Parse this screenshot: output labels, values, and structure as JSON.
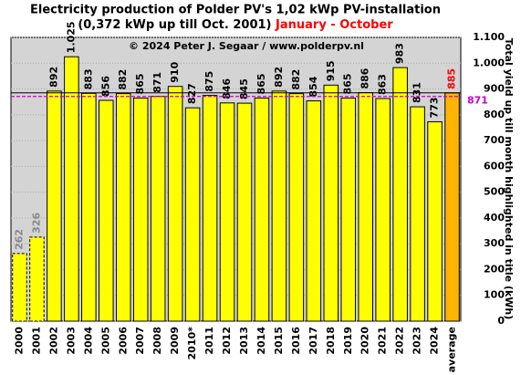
{
  "chart_data": {
    "type": "bar",
    "title": "Electricity production  of Polder PV's 1,02 kWp PV-installation",
    "subtitle": "(0,372 kWp up till Oct. 2001)",
    "subtitle_highlight": "January - October",
    "annotation": "© 2024 Peter J. Segaar / www.polderpv.nl",
    "y_axis_label": "Total yield up till month highlighted in title (kWh)",
    "categories": [
      "2000",
      "2001",
      "2002",
      "2003",
      "2004",
      "2005",
      "2006",
      "2007",
      "2008",
      "2009",
      "2010*",
      "2011",
      "2012",
      "2013",
      "2014",
      "2015",
      "2016",
      "2017",
      "2018",
      "2019",
      "2020",
      "2021",
      "2022",
      "2023",
      "2024",
      "average"
    ],
    "values": [
      262,
      326,
      892,
      1025,
      883,
      856,
      882,
      865,
      871,
      910,
      827,
      875,
      846,
      845,
      865,
      892,
      882,
      854,
      915,
      865,
      886,
      863,
      983,
      831,
      773,
      885
    ],
    "value_labels": [
      "262",
      "326",
      "892",
      "1.025",
      "883",
      "856",
      "882",
      "865",
      "871",
      "910",
      "827",
      "875",
      "846",
      "845",
      "865",
      "892",
      "882",
      "854",
      "915",
      "865",
      "886",
      "863",
      "983",
      "831",
      "773",
      "885"
    ],
    "bar_colors": [
      "#ffff00",
      "#ffff00",
      "#ffff00",
      "#ffff00",
      "#ffff00",
      "#ffff00",
      "#ffff00",
      "#ffff00",
      "#ffff00",
      "#ffff00",
      "#ffff00",
      "#ffff00",
      "#ffff00",
      "#ffff00",
      "#ffff00",
      "#ffff00",
      "#ffff00",
      "#ffff00",
      "#ffff00",
      "#ffff00",
      "#ffff00",
      "#ffff00",
      "#ffff00",
      "#ffff00",
      "#ffff00",
      "#ffb400"
    ],
    "bar_dashed": [
      true,
      true,
      false,
      false,
      false,
      false,
      false,
      false,
      false,
      false,
      false,
      false,
      false,
      false,
      false,
      false,
      false,
      false,
      false,
      false,
      false,
      false,
      false,
      false,
      false,
      false
    ],
    "value_label_colors": [
      "#888888",
      "#888888",
      "#000000",
      "#000000",
      "#000000",
      "#000000",
      "#000000",
      "#000000",
      "#000000",
      "#000000",
      "#000000",
      "#000000",
      "#000000",
      "#000000",
      "#000000",
      "#000000",
      "#000000",
      "#000000",
      "#000000",
      "#000000",
      "#000000",
      "#000000",
      "#000000",
      "#000000",
      "#000000",
      "#ff0000"
    ],
    "reference_line": {
      "value": 871,
      "color": "#cc00cc"
    },
    "ylim": [
      0,
      1100
    ],
    "yticks": [
      0,
      100,
      200,
      300,
      400,
      500,
      600,
      700,
      800,
      900,
      {
        "value": 1000,
        "label": "1.000"
      },
      {
        "value": 1100,
        "label": "1.100"
      }
    ],
    "grid": true,
    "plot_background": "#d4d4d4"
  }
}
